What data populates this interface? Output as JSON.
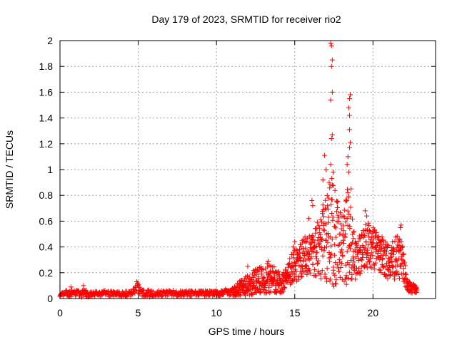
{
  "chart_data": {
    "type": "scatter",
    "title": "Day 179 of 2023, SRMTID for receiver rio2",
    "xlabel": "GPS time / hours",
    "ylabel": "SRMTID / TECUs",
    "xlim": [
      0,
      24
    ],
    "ylim": [
      0,
      2
    ],
    "xticks": [
      "0",
      "5",
      "10",
      "15",
      "20"
    ],
    "yticks": [
      "0",
      "0.2",
      "0.4",
      "0.6",
      "0.8",
      "1",
      "1.2",
      "1.4",
      "1.6",
      "1.8",
      "2"
    ],
    "grid": true,
    "marker": "+",
    "color": "#ff0000",
    "profile": [
      {
        "t": 0.0,
        "base": 0.035,
        "spread": 0.02
      },
      {
        "t": 0.6,
        "base": 0.04,
        "spread": 0.03
      },
      {
        "t": 1.5,
        "base": 0.04,
        "spread": 0.03
      },
      {
        "t": 4.5,
        "base": 0.035,
        "spread": 0.02
      },
      {
        "t": 4.9,
        "base": 0.09,
        "spread": 0.04
      },
      {
        "t": 5.3,
        "base": 0.04,
        "spread": 0.03
      },
      {
        "t": 9.5,
        "base": 0.04,
        "spread": 0.02
      },
      {
        "t": 11.0,
        "base": 0.05,
        "spread": 0.03
      },
      {
        "t": 11.8,
        "base": 0.1,
        "spread": 0.08
      },
      {
        "t": 12.5,
        "base": 0.13,
        "spread": 0.1
      },
      {
        "t": 13.3,
        "base": 0.16,
        "spread": 0.12
      },
      {
        "t": 14.2,
        "base": 0.12,
        "spread": 0.08
      },
      {
        "t": 14.8,
        "base": 0.22,
        "spread": 0.12
      },
      {
        "t": 15.5,
        "base": 0.32,
        "spread": 0.15
      },
      {
        "t": 16.2,
        "base": 0.33,
        "spread": 0.18
      },
      {
        "t": 16.8,
        "base": 0.45,
        "spread": 0.3
      },
      {
        "t": 17.4,
        "base": 0.5,
        "spread": 0.45
      },
      {
        "t": 18.0,
        "base": 0.38,
        "spread": 0.25
      },
      {
        "t": 18.4,
        "base": 0.5,
        "spread": 0.4
      },
      {
        "t": 18.9,
        "base": 0.3,
        "spread": 0.15
      },
      {
        "t": 19.6,
        "base": 0.42,
        "spread": 0.2
      },
      {
        "t": 20.3,
        "base": 0.35,
        "spread": 0.15
      },
      {
        "t": 21.0,
        "base": 0.3,
        "spread": 0.15
      },
      {
        "t": 21.8,
        "base": 0.33,
        "spread": 0.18
      },
      {
        "t": 22.2,
        "base": 0.1,
        "spread": 0.05
      },
      {
        "t": 22.8,
        "base": 0.06,
        "spread": 0.03
      }
    ],
    "peaks": [
      {
        "x": 17.3,
        "y": 1.98
      },
      {
        "x": 17.35,
        "y": 1.96
      },
      {
        "x": 17.4,
        "y": 1.85
      },
      {
        "x": 17.35,
        "y": 1.8
      },
      {
        "x": 17.4,
        "y": 1.6
      },
      {
        "x": 17.3,
        "y": 1.54
      },
      {
        "x": 17.4,
        "y": 1.27
      },
      {
        "x": 17.35,
        "y": 1.24
      },
      {
        "x": 17.3,
        "y": 1.04
      },
      {
        "x": 17.45,
        "y": 0.98
      },
      {
        "x": 17.2,
        "y": 0.9
      },
      {
        "x": 17.4,
        "y": 0.88
      },
      {
        "x": 16.9,
        "y": 1.11
      },
      {
        "x": 16.8,
        "y": 0.92
      },
      {
        "x": 17.0,
        "y": 1.0
      },
      {
        "x": 18.55,
        "y": 1.58
      },
      {
        "x": 18.5,
        "y": 1.55
      },
      {
        "x": 18.45,
        "y": 1.48
      },
      {
        "x": 18.5,
        "y": 1.42
      },
      {
        "x": 18.5,
        "y": 1.31
      },
      {
        "x": 18.55,
        "y": 1.21
      },
      {
        "x": 18.5,
        "y": 1.17
      },
      {
        "x": 18.4,
        "y": 1.1
      },
      {
        "x": 18.35,
        "y": 1.04
      },
      {
        "x": 18.45,
        "y": 0.98
      },
      {
        "x": 18.6,
        "y": 0.85
      },
      {
        "x": 18.4,
        "y": 0.82
      },
      {
        "x": 16.1,
        "y": 0.76
      },
      {
        "x": 16.15,
        "y": 0.72
      },
      {
        "x": 15.9,
        "y": 0.62
      },
      {
        "x": 19.5,
        "y": 0.68
      },
      {
        "x": 19.6,
        "y": 0.64
      },
      {
        "x": 21.8,
        "y": 0.57
      },
      {
        "x": 21.75,
        "y": 0.55
      },
      {
        "x": 4.9,
        "y": 0.13
      },
      {
        "x": 0.7,
        "y": 0.09
      },
      {
        "x": 1.5,
        "y": 0.1
      },
      {
        "x": 12.0,
        "y": 0.25
      },
      {
        "x": 13.3,
        "y": 0.29
      },
      {
        "x": 14.9,
        "y": 0.4
      },
      {
        "x": 15.0,
        "y": 0.44
      }
    ]
  }
}
